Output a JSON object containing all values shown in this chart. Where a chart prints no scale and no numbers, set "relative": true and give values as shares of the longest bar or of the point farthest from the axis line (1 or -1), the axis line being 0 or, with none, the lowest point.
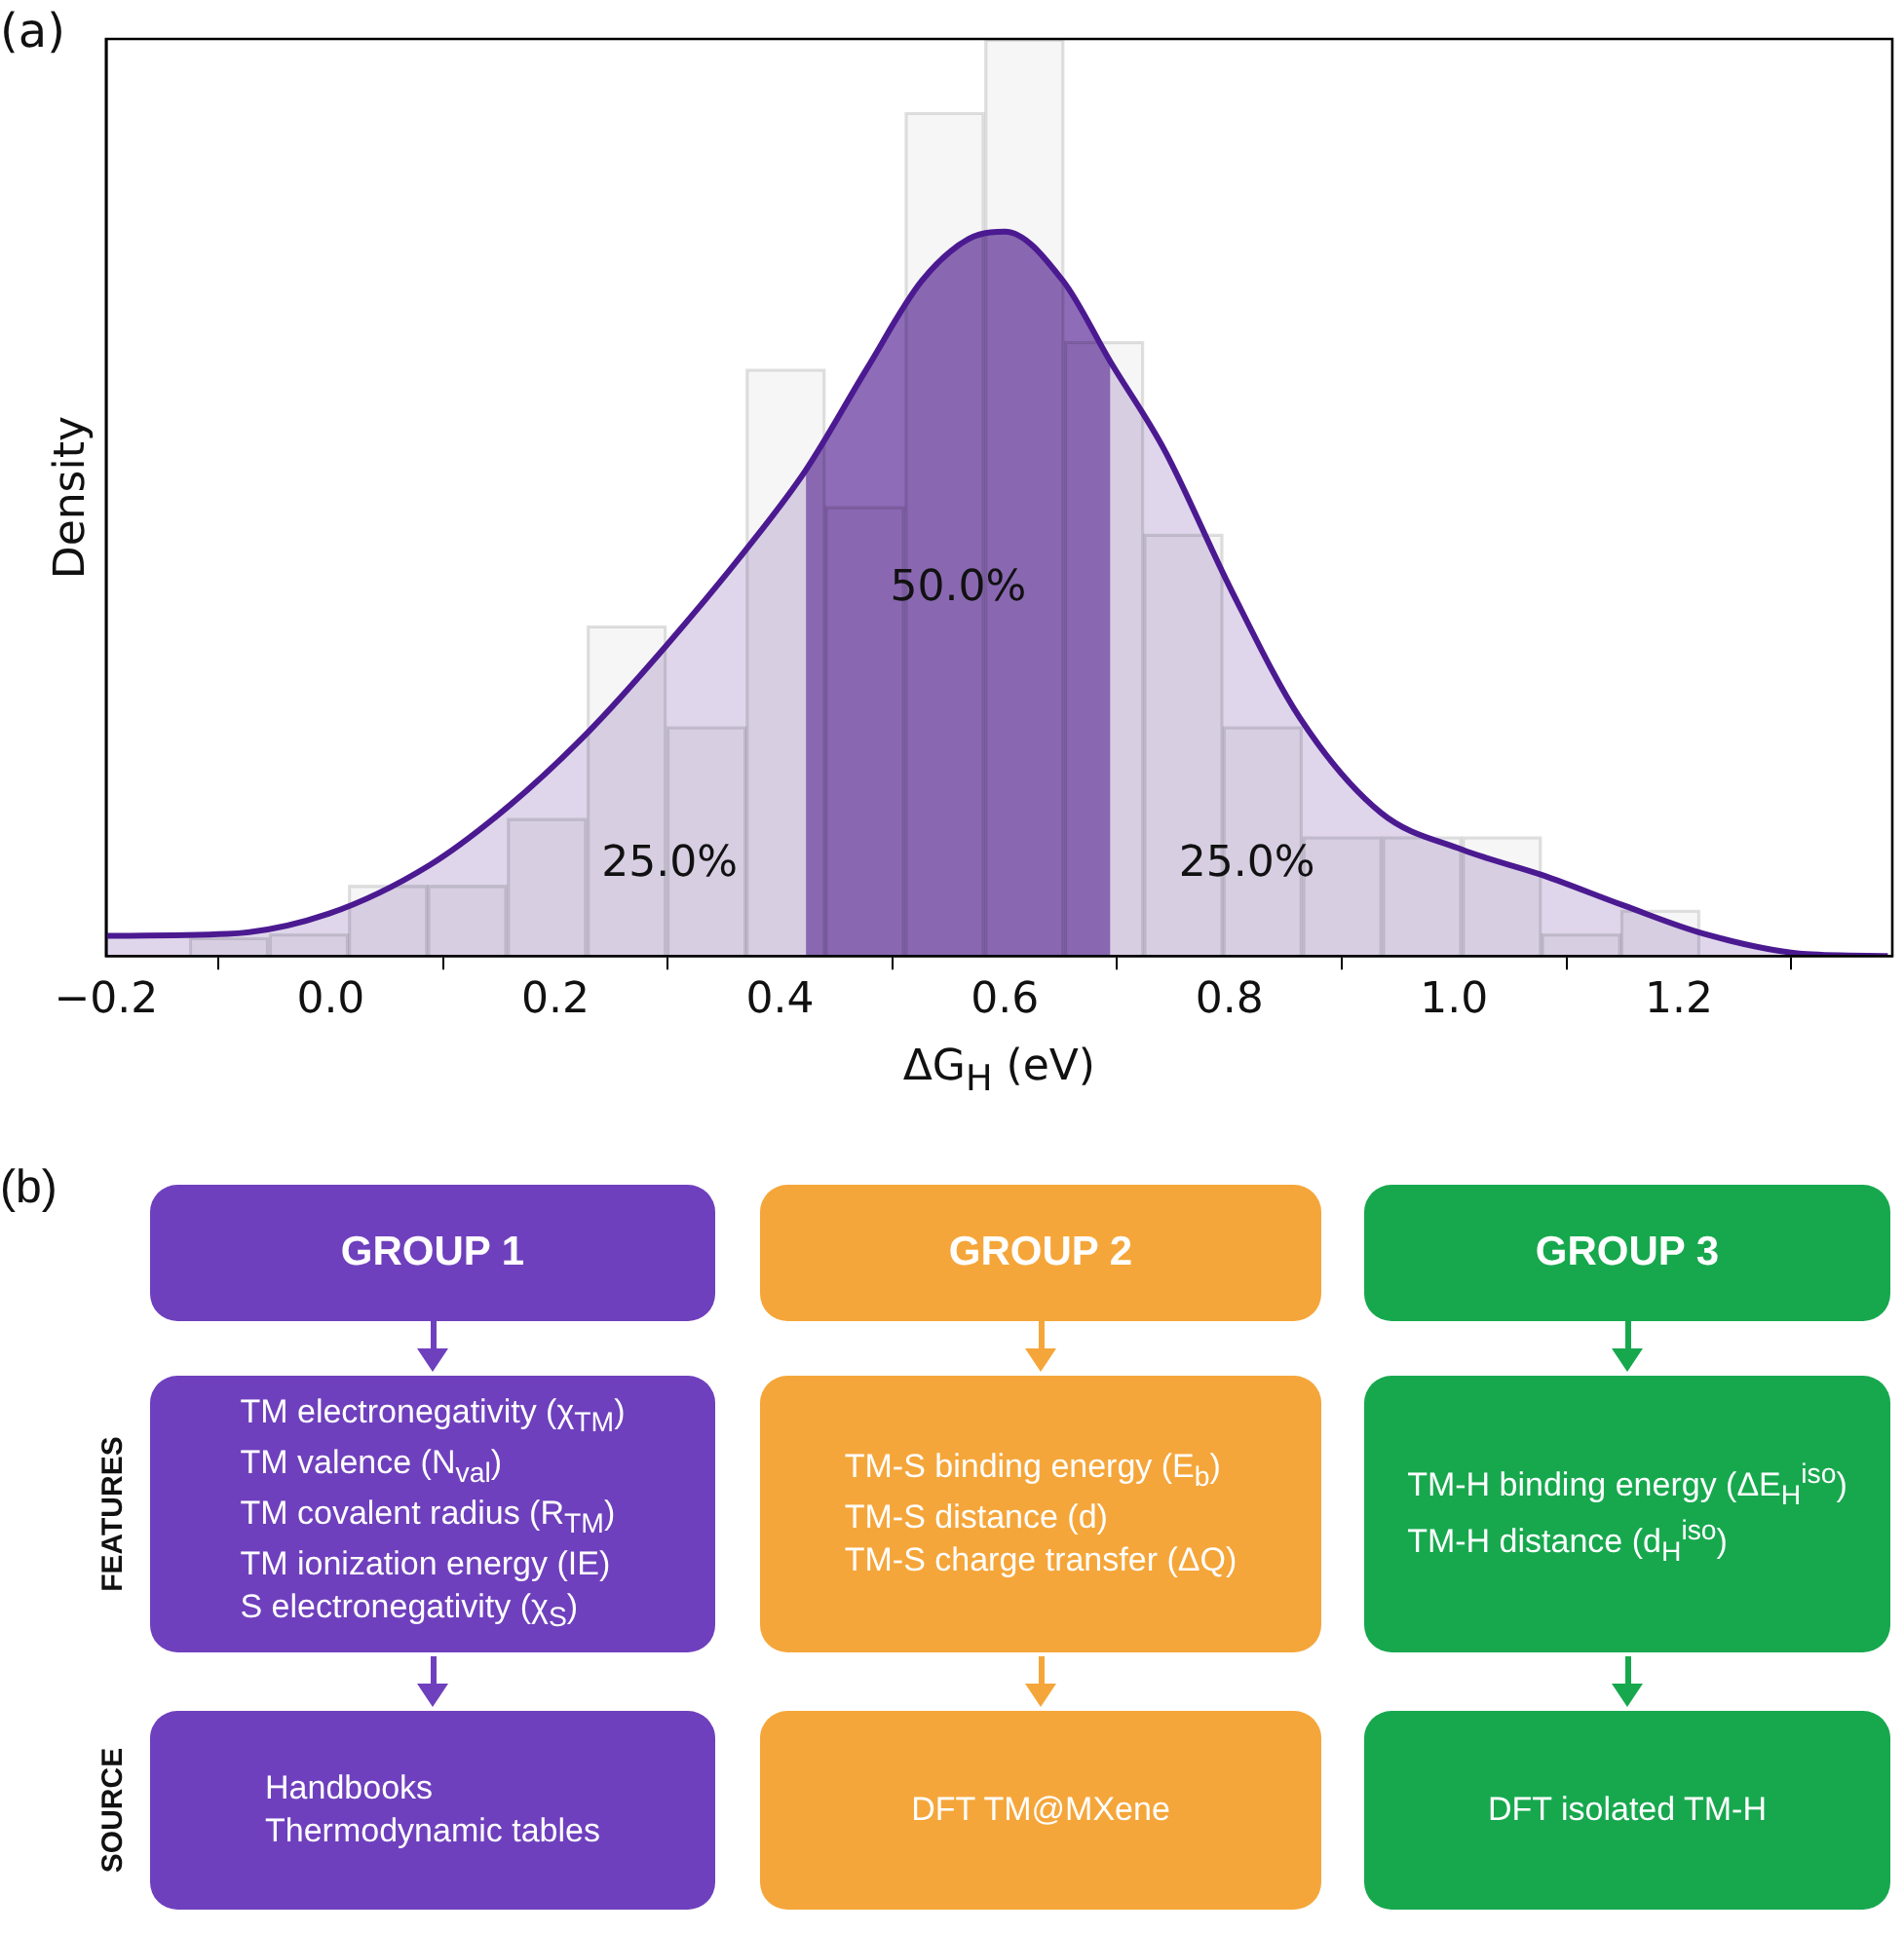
{
  "chart_data": [
    {
      "type": "histogram",
      "xlabel": "ΔG$_{H}$ (eV)",
      "ylabel": "Density",
      "relative": true,
      "bins": [
        -0.126,
        -0.055,
        0.016,
        0.086,
        0.157,
        0.228,
        0.299,
        0.37,
        0.44,
        0.511,
        0.582,
        0.653,
        0.724,
        0.794,
        0.865,
        0.936,
        1.007,
        1.078,
        1.148,
        1.219
      ],
      "values": [
        0.02,
        0.024,
        0.077,
        0.077,
        0.15,
        0.36,
        0.25,
        0.64,
        0.49,
        0.92,
        1,
        0.67,
        0.46,
        0.25,
        0.13,
        0.13,
        0.13,
        0.024,
        0.05
      ],
      "color": "#f6f6f6",
      "series": [
        {
          "type": "area",
          "color": "#4b1a91",
          "x": [
            -0.2,
            -0.092,
            -0.002,
            0.088,
            0.16,
            0.229,
            0.297,
            0.369,
            0.423,
            0.477,
            0.526,
            0.568,
            0.6,
            0.652,
            0.694,
            0.742,
            0.802,
            0.863,
            0.935,
            1.007,
            1.079,
            1.151,
            1.223,
            1.314,
            1.386
          ],
          "values": [
            0.022,
            0.024,
            0.046,
            0.099,
            0.165,
            0.244,
            0.336,
            0.442,
            0.53,
            0.64,
            0.736,
            0.782,
            0.79,
            0.736,
            0.648,
            0.552,
            0.398,
            0.259,
            0.156,
            0.116,
            0.088,
            0.055,
            0.024,
            0.002,
            0
          ]
        },
        {
          "type": "area",
          "color": "#8e6cb8",
          "x": [
            0.423,
            0.477,
            0.526,
            0.568,
            0.6,
            0.652,
            0.694
          ],
          "values": [
            0.53,
            0.64,
            0.736,
            0.782,
            0.79,
            0.736,
            0.648
          ]
        }
      ],
      "annotations": [
        "(a)",
        "25.0%",
        "50.0%",
        "25.0%"
      ],
      "xlim": [
        -0.2,
        1.39
      ],
      "xticks": [
        {
          "value": -0.2,
          "label": "−0.2"
        },
        {
          "value": 0,
          "label": "0.0"
        },
        {
          "value": 0.2,
          "label": "0.2"
        },
        {
          "value": 0.4,
          "label": "0.4"
        },
        {
          "value": 0.6,
          "label": "0.6"
        },
        {
          "value": 0.8,
          "label": "0.8"
        },
        {
          "value": 1,
          "label": "1.0"
        },
        {
          "value": 1.2,
          "label": "1.2"
        }
      ]
    },
    {
      "type": "other",
      "categories": [
        "GROUP 1",
        "GROUP 2",
        "GROUP 3"
      ],
      "colors": [
        "#6f40bd",
        "#f5a63a",
        "#17a84e"
      ],
      "y_categories": [
        "FEATURES",
        "SOURCE"
      ],
      "cell_labels": [
        [
          "TM electronegativity (χ$_{TM}$)\nTM valence (N$_{val}$)\nTM covalent radius (R$_{TM}$)\nTM ionization energy (IE)\nS electronegativity (χ$_{S}$)",
          "TM-S binding energy (E$_{b}$)\nTM-S distance (d)\nTM-S charge transfer (ΔQ)",
          "TM-H binding energy (ΔE$_{H}$$^{iso}$)\nTM-H distance (d$_{H}$$^{iso}$)"
        ],
        [
          "Handbooks\nThermodynamic tables",
          "DFT TM@MXene",
          "DFT isolated TM-H"
        ]
      ],
      "annotations": [
        "(b)"
      ]
    }
  ]
}
